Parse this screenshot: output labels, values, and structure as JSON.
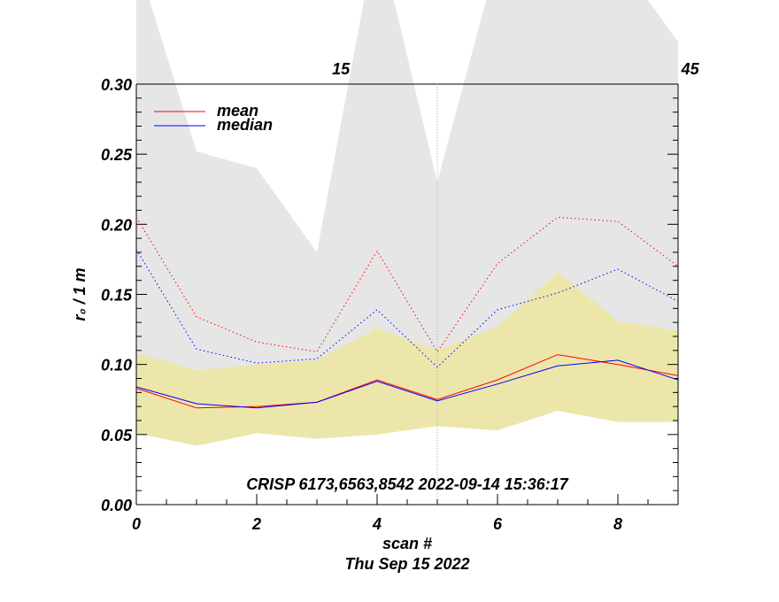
{
  "chart_data": {
    "type": "line",
    "x": [
      0,
      1,
      2,
      3,
      4,
      5,
      6,
      7,
      8,
      9
    ],
    "xlim": [
      0,
      9
    ],
    "ylim": [
      0,
      0.3
    ],
    "xlabel": "scan #",
    "ylabel": "r₀ / 1 m",
    "date_label": "Thu Sep 15 2022",
    "annotation": "CRISP 6173,6563,8542 2022-09-14 15:36:17",
    "x_ticks": [
      0,
      2,
      4,
      6,
      8
    ],
    "x_tick_labels": [
      "0",
      "2",
      "4",
      "6",
      "8"
    ],
    "y_ticks": [
      0.0,
      0.05,
      0.1,
      0.15,
      0.2,
      0.25,
      0.3
    ],
    "y_tick_labels": [
      "0.00",
      "0.05",
      "0.10",
      "0.15",
      "0.20",
      "0.25",
      "0.30"
    ],
    "top_axis_tick_labels": [
      {
        "x": 3.4,
        "label": "15"
      },
      {
        "x": 9.2,
        "label": "45"
      }
    ],
    "vertical_marker_x": 5,
    "grid": false,
    "legend_position": "top-left",
    "legend": [
      {
        "name": "mean",
        "color": "#ff0000"
      },
      {
        "name": "median",
        "color": "#0000ff"
      }
    ],
    "bands": [
      {
        "name": "max-band",
        "color": "#e6e6e6",
        "lower": [
          0.051,
          0.042,
          0.051,
          0.047,
          0.05,
          0.056,
          0.053,
          0.067,
          0.059,
          0.059
        ],
        "upper": [
          0.39,
          0.252,
          0.24,
          0.18,
          0.41,
          0.23,
          0.39,
          0.39,
          0.39,
          0.33
        ]
      },
      {
        "name": "std-band",
        "color": "#ede6aa",
        "lower": [
          0.051,
          0.042,
          0.051,
          0.047,
          0.05,
          0.056,
          0.053,
          0.067,
          0.059,
          0.059
        ],
        "upper": [
          0.108,
          0.096,
          0.1,
          0.103,
          0.126,
          0.11,
          0.127,
          0.166,
          0.131,
          0.124
        ]
      }
    ],
    "series": [
      {
        "name": "mean",
        "color": "#ff0000",
        "style": "solid",
        "values": [
          0.083,
          0.069,
          0.07,
          0.073,
          0.089,
          0.075,
          0.089,
          0.107,
          0.1,
          0.092
        ]
      },
      {
        "name": "median",
        "color": "#0000ff",
        "style": "solid",
        "values": [
          0.084,
          0.072,
          0.069,
          0.073,
          0.088,
          0.074,
          0.086,
          0.099,
          0.103,
          0.089
        ]
      },
      {
        "name": "mean-max",
        "color": "#ff0000",
        "style": "dotted",
        "values": [
          0.205,
          0.134,
          0.116,
          0.109,
          0.181,
          0.109,
          0.172,
          0.205,
          0.202,
          0.17
        ]
      },
      {
        "name": "median-max",
        "color": "#0000ff",
        "style": "dotted",
        "values": [
          0.182,
          0.111,
          0.101,
          0.104,
          0.139,
          0.098,
          0.139,
          0.151,
          0.168,
          0.145
        ]
      }
    ]
  }
}
